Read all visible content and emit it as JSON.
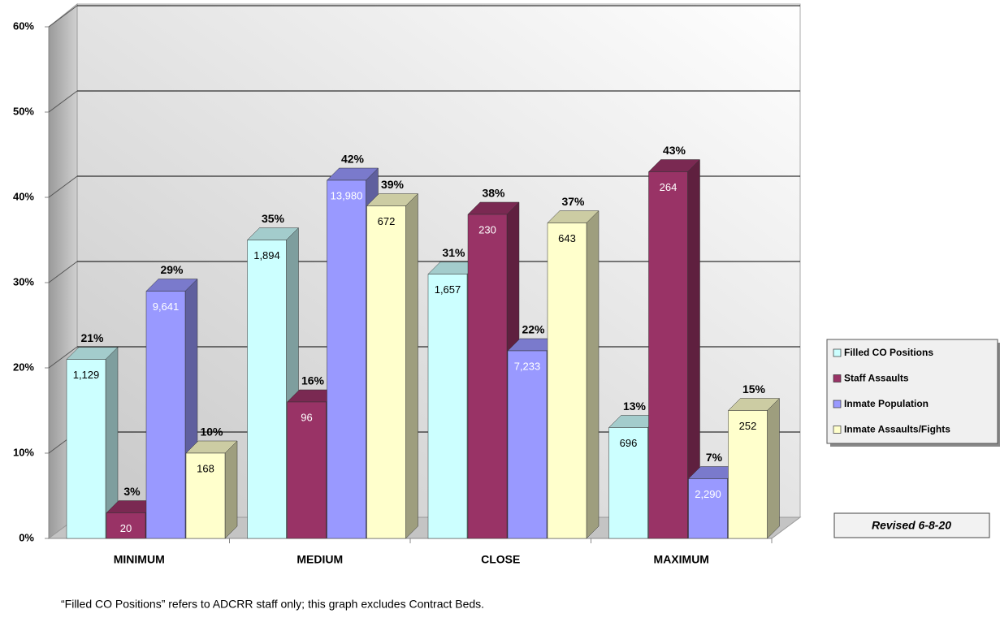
{
  "chart_data": {
    "type": "bar3d",
    "categories": [
      "MINIMUM",
      "MEDIUM",
      "CLOSE",
      "MAXIMUM"
    ],
    "series": [
      {
        "name": "Filled CO Positions",
        "color": "#ccffff",
        "values": [
          21,
          35,
          31,
          13
        ],
        "value_labels": [
          "21%",
          "35%",
          "31%",
          "13%"
        ],
        "counts": [
          "1,129",
          "1,894",
          "1,657",
          "696"
        ]
      },
      {
        "name": "Staff Assaults",
        "color": "#993366",
        "values": [
          3,
          16,
          38,
          43
        ],
        "value_labels": [
          "3%",
          "16%",
          "38%",
          "43%"
        ],
        "counts": [
          "20",
          "96",
          "230",
          "264"
        ]
      },
      {
        "name": "Inmate Population",
        "color": "#9999ff",
        "values": [
          29,
          42,
          22,
          7
        ],
        "value_labels": [
          "29%",
          "42%",
          "22%",
          "7%"
        ],
        "counts": [
          "9,641",
          "13,980",
          "7,233",
          "2,290"
        ]
      },
      {
        "name": "Inmate Assaults/Fights",
        "color": "#ffffcc",
        "values": [
          10,
          39,
          37,
          15
        ],
        "value_labels": [
          "10%",
          "39%",
          "37%",
          "15%"
        ],
        "counts": [
          "168",
          "672",
          "643",
          "252"
        ]
      }
    ],
    "ylim": [
      0,
      60
    ],
    "yticks": [
      {
        "value": 0,
        "label": "0%"
      },
      {
        "value": 10,
        "label": "10%"
      },
      {
        "value": 20,
        "label": "20%"
      },
      {
        "value": 30,
        "label": "30%"
      },
      {
        "value": 40,
        "label": "40%"
      },
      {
        "value": 50,
        "label": "50%"
      },
      {
        "value": 60,
        "label": "60%"
      }
    ],
    "grid": true,
    "annotation": "Revised 6-8-20",
    "footnote": "“Filled CO Positions” refers to ADCRR staff only; this graph excludes Contract Beds."
  }
}
